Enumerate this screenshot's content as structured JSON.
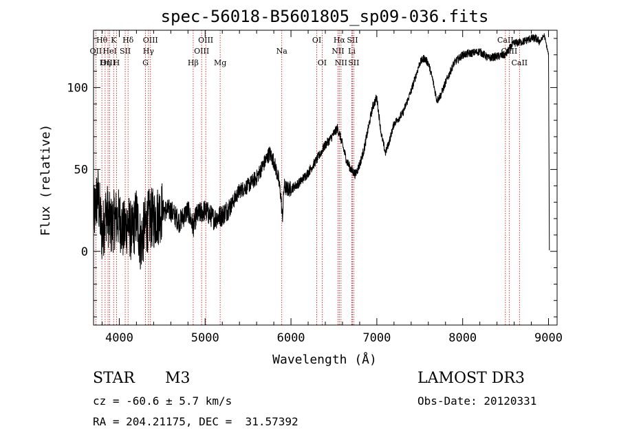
{
  "chart_data": {
    "type": "line",
    "title": "spec-56018-B5601805_sp09-036.fits",
    "xlabel": "Wavelength (Å)",
    "ylabel": "Flux (relative)",
    "xlim": [
      3700,
      9100
    ],
    "ylim": [
      -45,
      135
    ],
    "xticks": [
      4000,
      5000,
      6000,
      7000,
      8000,
      9000
    ],
    "xtick_labels": [
      "4000",
      "5000",
      "6000",
      "7000",
      "8000",
      "9000"
    ],
    "yticks": [
      0,
      50,
      100
    ],
    "ytick_labels": [
      "0",
      "50",
      "100"
    ],
    "line_color": "#000000",
    "marker_color": "#cc0000",
    "series": [
      {
        "name": "flux",
        "x": [
          3700,
          3750,
          3800,
          3850,
          3900,
          3950,
          4000,
          4050,
          4100,
          4150,
          4200,
          4250,
          4300,
          4350,
          4400,
          4450,
          4500,
          4600,
          4700,
          4800,
          4860,
          4900,
          5000,
          5100,
          5200,
          5300,
          5400,
          5500,
          5600,
          5700,
          5750,
          5800,
          5850,
          5880,
          5900,
          5920,
          5950,
          6000,
          6100,
          6200,
          6300,
          6400,
          6450,
          6500,
          6540,
          6563,
          6600,
          6650,
          6700,
          6750,
          6800,
          6850,
          6900,
          6950,
          7000,
          7050,
          7100,
          7150,
          7200,
          7300,
          7400,
          7500,
          7550,
          7600,
          7650,
          7700,
          7750,
          7800,
          7900,
          8000,
          8100,
          8200,
          8300,
          8400,
          8500,
          8550,
          8600,
          8700,
          8800,
          8850,
          8900,
          8950,
          9000,
          9010
        ],
        "y": [
          20,
          35,
          10,
          25,
          15,
          20,
          20,
          12,
          18,
          10,
          22,
          5,
          15,
          20,
          20,
          22,
          25,
          25,
          18,
          25,
          15,
          22,
          25,
          20,
          22,
          28,
          37,
          40,
          45,
          55,
          60,
          55,
          45,
          35,
          20,
          40,
          38,
          38,
          42,
          48,
          56,
          65,
          68,
          72,
          75,
          72,
          65,
          55,
          50,
          47,
          53,
          62,
          75,
          88,
          94,
          72,
          60,
          68,
          78,
          84,
          98,
          115,
          118,
          115,
          105,
          92,
          96,
          103,
          115,
          120,
          121,
          122,
          118,
          119,
          120,
          124,
          127,
          128,
          130,
          130,
          128,
          132,
          120,
          2
        ]
      }
    ],
    "lines": [
      {
        "name": "H-theta",
        "wl": 3797,
        "label": "Hθ",
        "row": 1
      },
      {
        "name": "OII",
        "wl": 3727,
        "label": "OII",
        "row": 2
      },
      {
        "name": "OIII-3869",
        "wl": 3869,
        "label": "OIII",
        "row": 3
      },
      {
        "name": "HeI",
        "wl": 3889,
        "label": "HeI",
        "row": 2
      },
      {
        "name": "H-eta",
        "wl": 3835,
        "label": "Hη",
        "row": 3
      },
      {
        "name": "K",
        "wl": 3934,
        "label": "K",
        "row": 1
      },
      {
        "name": "H",
        "wl": 3968,
        "label": "H",
        "row": 3
      },
      {
        "name": "SII-4068",
        "wl": 4069,
        "label": "SII",
        "row": 2
      },
      {
        "name": "H-delta",
        "wl": 4102,
        "label": "Hδ",
        "row": 1
      },
      {
        "name": "OIII-4363",
        "wl": 4363,
        "label": "OIII",
        "row": 1
      },
      {
        "name": "H-gamma",
        "wl": 4340,
        "label": "Hγ",
        "row": 2
      },
      {
        "name": "G",
        "wl": 4305,
        "label": "G",
        "row": 3
      },
      {
        "name": "H-beta",
        "wl": 4861,
        "label": "Hβ",
        "row": 3
      },
      {
        "name": "OIII-4959",
        "wl": 4959,
        "label": "OIII",
        "row": 2
      },
      {
        "name": "OIII-5007",
        "wl": 5007,
        "label": "OIII",
        "row": 1
      },
      {
        "name": "Mg",
        "wl": 5175,
        "label": "Mg",
        "row": 3
      },
      {
        "name": "Na",
        "wl": 5893,
        "label": "Na",
        "row": 2
      },
      {
        "name": "OI-6300",
        "wl": 6300,
        "label": "OI",
        "row": 1
      },
      {
        "name": "OI-6363",
        "wl": 6363,
        "label": "OI",
        "row": 3
      },
      {
        "name": "H-alpha",
        "wl": 6563,
        "label": "Hα",
        "row": 1
      },
      {
        "name": "NII-6548",
        "wl": 6548,
        "label": "NII",
        "row": 2
      },
      {
        "name": "NII-6583",
        "wl": 6583,
        "label": "NII",
        "row": 3
      },
      {
        "name": "SII-6716",
        "wl": 6716,
        "label": "SII",
        "row": 1
      },
      {
        "name": "Li",
        "wl": 6708,
        "label": "Li",
        "row": 2
      },
      {
        "name": "SII-6731",
        "wl": 6731,
        "label": "SII",
        "row": 3
      },
      {
        "name": "CaII-8498",
        "wl": 8498,
        "label": "CaII",
        "row": 1
      },
      {
        "name": "CaII-8542",
        "wl": 8542,
        "label": "CaII",
        "row": 2
      },
      {
        "name": "CaII-8662",
        "wl": 8662,
        "label": "CaII",
        "row": 3
      }
    ]
  },
  "footer": {
    "object_class": "STAR",
    "subclass": "M3",
    "survey": "LAMOST DR3",
    "cz": "cz = -60.6 ± 5.7 km/s",
    "obs_date": "Obs-Date: 20120331",
    "coords": "RA = 204.21175, DEC =  31.57392"
  }
}
